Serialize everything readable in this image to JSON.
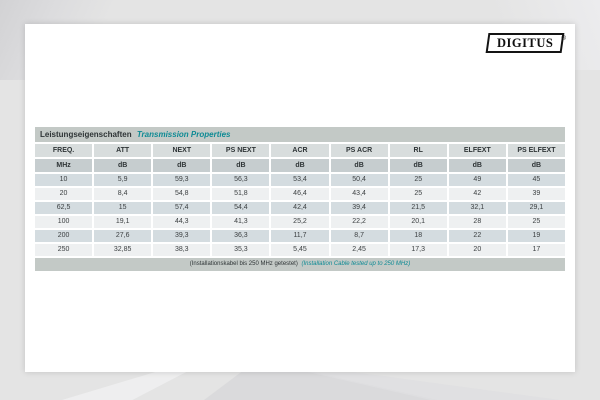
{
  "logo": {
    "text": "DIGITUS",
    "registered": "®"
  },
  "table": {
    "title_de": "Leistungseigenschaften",
    "title_en": "Transmission Properties",
    "columns": [
      "FREQ.",
      "ATT",
      "NEXT",
      "PS NEXT",
      "ACR",
      "PS ACR",
      "RL",
      "ELFEXT",
      "PS ELFEXT"
    ],
    "units": [
      "MHz",
      "dB",
      "dB",
      "dB",
      "dB",
      "dB",
      "dB",
      "dB",
      "dB"
    ],
    "rows": [
      [
        "10",
        "5,9",
        "59,3",
        "56,3",
        "53,4",
        "50,4",
        "25",
        "49",
        "45"
      ],
      [
        "20",
        "8,4",
        "54,8",
        "51,8",
        "46,4",
        "43,4",
        "25",
        "42",
        "39"
      ],
      [
        "62,5",
        "15",
        "57,4",
        "54,4",
        "42,4",
        "39,4",
        "21,5",
        "32,1",
        "29,1"
      ],
      [
        "100",
        "19,1",
        "44,3",
        "41,3",
        "25,2",
        "22,2",
        "20,1",
        "28",
        "25"
      ],
      [
        "200",
        "27,6",
        "39,3",
        "36,3",
        "11,7",
        "8,7",
        "18",
        "22",
        "19"
      ],
      [
        "250",
        "32,85",
        "38,3",
        "35,3",
        "5,45",
        "2,45",
        "17,3",
        "20",
        "17"
      ]
    ],
    "footnote_de": "(Installationskabel bis 250 MHz getestet)",
    "footnote_en": "(Installation Cable tested up to 250 MHz)"
  },
  "colors": {
    "accent_teal": "#0d8a94",
    "title_bar_bg": "#c3c9c6",
    "header_bg": "#d8dddd",
    "units_bg": "#c6cdcf",
    "row_odd_bg": "#d4dce0",
    "row_even_bg": "#eef0f1"
  }
}
